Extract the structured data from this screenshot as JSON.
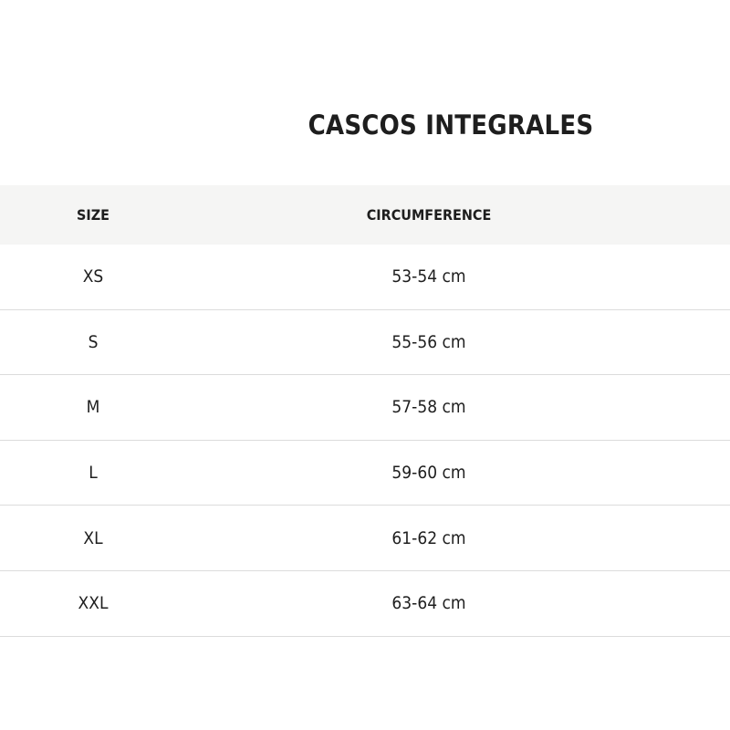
{
  "title": "CASCOS INTEGRALES",
  "table": {
    "headers": [
      "SIZE",
      "CIRCUMFERENCE"
    ],
    "rows": [
      [
        "XS",
        "53-54 cm"
      ],
      [
        "S",
        "55-56 cm"
      ],
      [
        "M",
        "57-58 cm"
      ],
      [
        "L",
        "59-60 cm"
      ],
      [
        "XL",
        "61-62 cm"
      ],
      [
        "XXL",
        "63-64 cm"
      ]
    ]
  }
}
